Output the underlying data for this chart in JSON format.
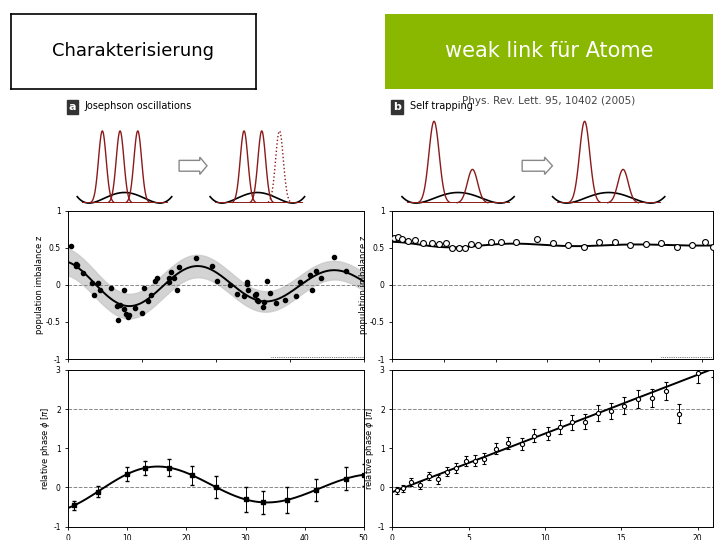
{
  "title_left": "Charakterisierung",
  "title_right": "weak link für Atome",
  "subtitle": "Phys. Rev. Lett. 95, 10402 (2005)",
  "title_right_bg": "#8ab800",
  "title_right_color": "#ffffff",
  "title_left_color": "#000000",
  "title_left_bg": "#ffffff",
  "bg_color": "#ffffff",
  "panel_a_title": "Josephson oscillations",
  "panel_b_title": "Self trapping"
}
